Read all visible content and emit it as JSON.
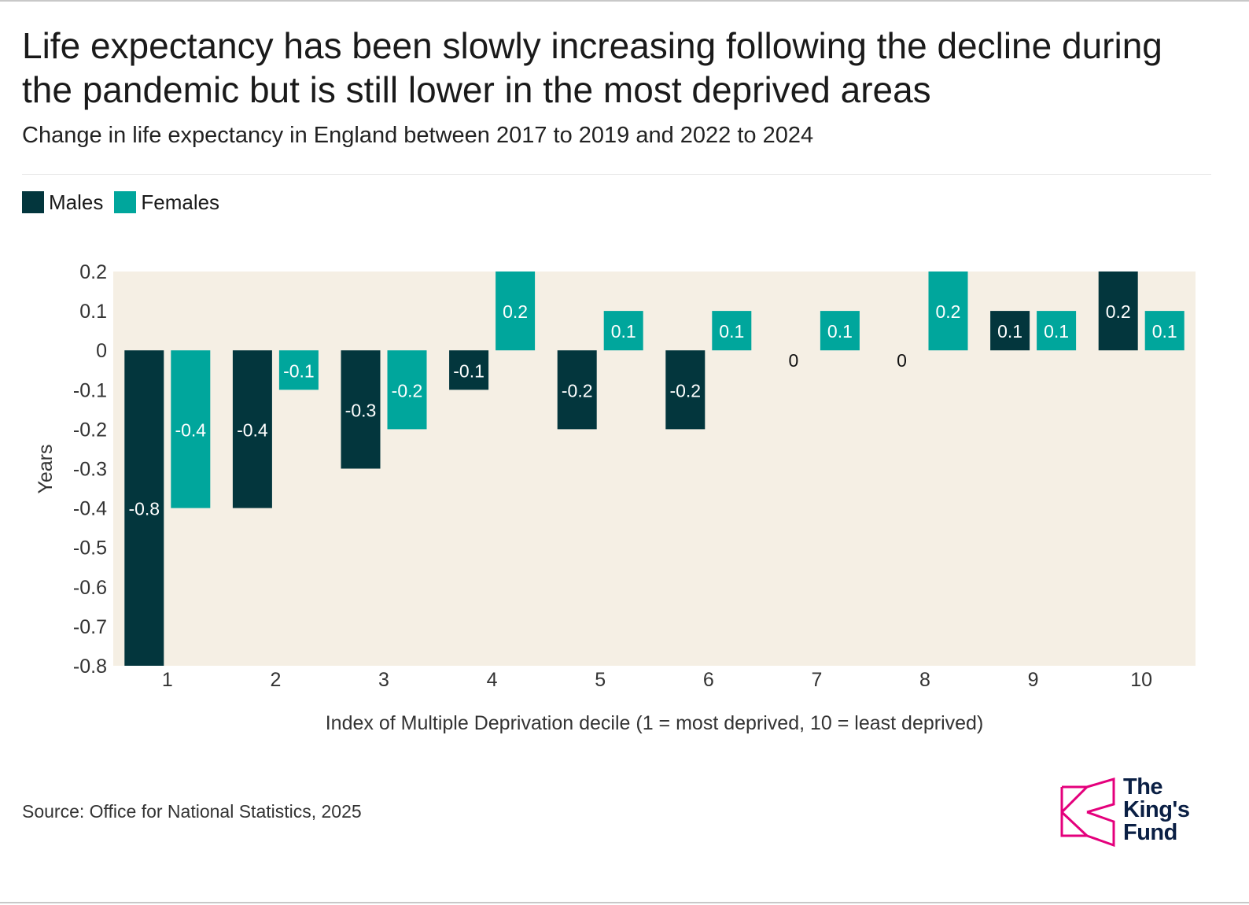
{
  "header": {
    "title": "Life expectancy has been slowly increasing following the decline during the pandemic but is still lower in the most deprived areas",
    "subtitle": "Change in life expectancy in England between 2017 to 2019 and 2022 to 2024"
  },
  "legend": {
    "males_label": "Males",
    "females_label": "Females"
  },
  "colors": {
    "males": "#03363d",
    "females": "#00a69c",
    "plot_background": "#f5efe4",
    "logo_accent": "#e4007c"
  },
  "chart_data": {
    "type": "bar",
    "title": "Life expectancy has been slowly increasing following the decline during the pandemic but is still lower in the most deprived areas",
    "subtitle": "Change in life expectancy in England between 2017 to 2019 and 2022 to 2024",
    "xlabel": "Index of Multiple Deprivation decile (1 = most deprived, 10 = least deprived)",
    "ylabel": "Years",
    "categories": [
      "1",
      "2",
      "3",
      "4",
      "5",
      "6",
      "7",
      "8",
      "9",
      "10"
    ],
    "series": [
      {
        "name": "Males",
        "values": [
          -0.8,
          -0.4,
          -0.3,
          -0.1,
          -0.2,
          -0.2,
          0,
          0,
          0.1,
          0.2
        ]
      },
      {
        "name": "Females",
        "values": [
          -0.4,
          -0.1,
          -0.2,
          0.2,
          0.1,
          0.1,
          0.1,
          0.2,
          0.1,
          0.1
        ]
      }
    ],
    "ylim": [
      -0.8,
      0.2
    ],
    "yticks": [
      "0.2",
      "0.1",
      "0",
      "-0.1",
      "-0.2",
      "-0.3",
      "-0.4",
      "-0.5",
      "-0.6",
      "-0.7",
      "-0.8"
    ],
    "data_labels": true,
    "grid": false,
    "legend_position": "top-left"
  },
  "footer": {
    "source": "Source: Office for National Statistics, 2025",
    "logo_lines": [
      "The",
      "King's",
      "Fund"
    ]
  }
}
